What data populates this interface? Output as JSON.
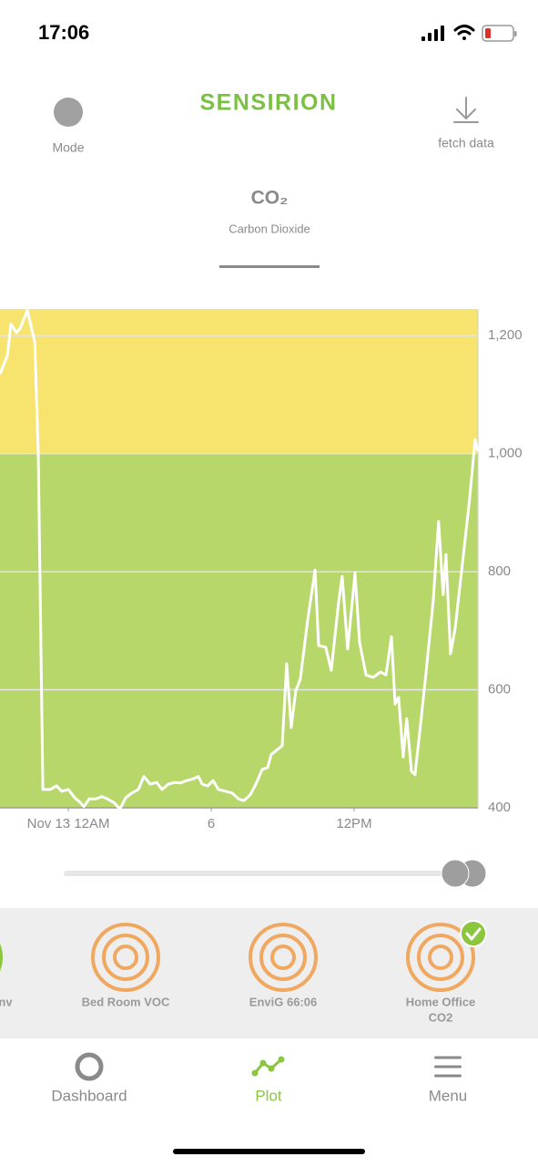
{
  "status_bar": {
    "time": "17:06"
  },
  "header": {
    "mode_label": "Mode",
    "brand": "SENSIRION",
    "fetch_label": "fetch data"
  },
  "metric": {
    "title": "CO₂",
    "subtitle": "Carbon Dioxide"
  },
  "chart_data": {
    "type": "line",
    "color": "#ffffff",
    "threshold": 1000,
    "band_colors": {
      "above": "#f7e46e",
      "below": "#b8d76a"
    },
    "x": [
      -2.87,
      -2.56,
      -2.41,
      -2.18,
      -2.03,
      -1.72,
      -1.41,
      -1.26,
      -1.07,
      -0.76,
      -0.5,
      -0.27,
      0,
      0.27,
      0.5,
      0.65,
      0.88,
      1.15,
      1.41,
      1.64,
      1.91,
      2.17,
      2.41,
      2.67,
      2.94,
      3.17,
      3.44,
      3.71,
      3.94,
      4.2,
      4.47,
      4.7,
      4.97,
      5.24,
      5.46,
      5.62,
      5.85,
      6.08,
      6.3,
      6.61,
      6.88,
      7.15,
      7.37,
      7.64,
      7.91,
      8.14,
      8.37,
      8.52,
      8.79,
      8.98,
      9.17,
      9.36,
      9.55,
      9.74,
      10.05,
      10.36,
      10.51,
      10.81,
      11.04,
      11.35,
      11.5,
      11.73,
      12.04,
      12.23,
      12.5,
      12.8,
      13.11,
      13.34,
      13.57,
      13.72,
      13.87,
      14.06,
      14.21,
      14.41,
      14.56,
      14.79,
      15.02,
      15.32,
      15.55,
      15.74,
      15.86,
      16.05,
      16.24,
      16.55,
      16.85,
      17.08,
      17.2
    ],
    "values": [
      1135,
      1166,
      1220,
      1205,
      1212,
      1243,
      1189,
      996,
      431,
      431,
      437,
      428,
      431,
      417,
      409,
      402,
      415,
      415,
      419,
      415,
      409,
      398,
      417,
      425,
      431,
      453,
      440,
      443,
      431,
      440,
      443,
      442,
      446,
      449,
      453,
      440,
      437,
      446,
      431,
      428,
      425,
      415,
      412,
      422,
      443,
      465,
      468,
      490,
      499,
      505,
      644,
      536,
      598,
      618,
      718,
      803,
      675,
      672,
      633,
      749,
      792,
      669,
      798,
      680,
      625,
      621,
      630,
      625,
      690,
      576,
      587,
      486,
      551,
      462,
      456,
      541,
      629,
      749,
      885,
      761,
      829,
      661,
      703,
      814,
      922,
      1024,
      1004
    ],
    "xlim": [
      -2.87,
      17.2
    ],
    "xticks": [
      {
        "value": 0,
        "label": "Nov 13 12AM"
      },
      6,
      {
        "value": 12,
        "label": "12PM"
      }
    ],
    "ylim": [
      400,
      1245
    ],
    "yticks": [
      400,
      600,
      800,
      {
        "value": 1000,
        "label": "1,000"
      },
      {
        "value": 1200,
        "label": "1,200"
      }
    ],
    "grid": true
  },
  "sensors": [
    {
      "lines": [
        "nv"
      ],
      "color": "#8cc63f"
    },
    {
      "lines": [
        "Bed Room VOC"
      ],
      "color": "#f0a860"
    },
    {
      "lines": [
        "EnviG 66:06"
      ],
      "color": "#f0a860"
    },
    {
      "lines": [
        "Home Office",
        "CO2"
      ],
      "color": "#f0a860",
      "selected": true
    }
  ],
  "tabs": [
    {
      "label": "Dashboard"
    },
    {
      "label": "Plot",
      "active": true
    },
    {
      "label": "Menu"
    }
  ]
}
